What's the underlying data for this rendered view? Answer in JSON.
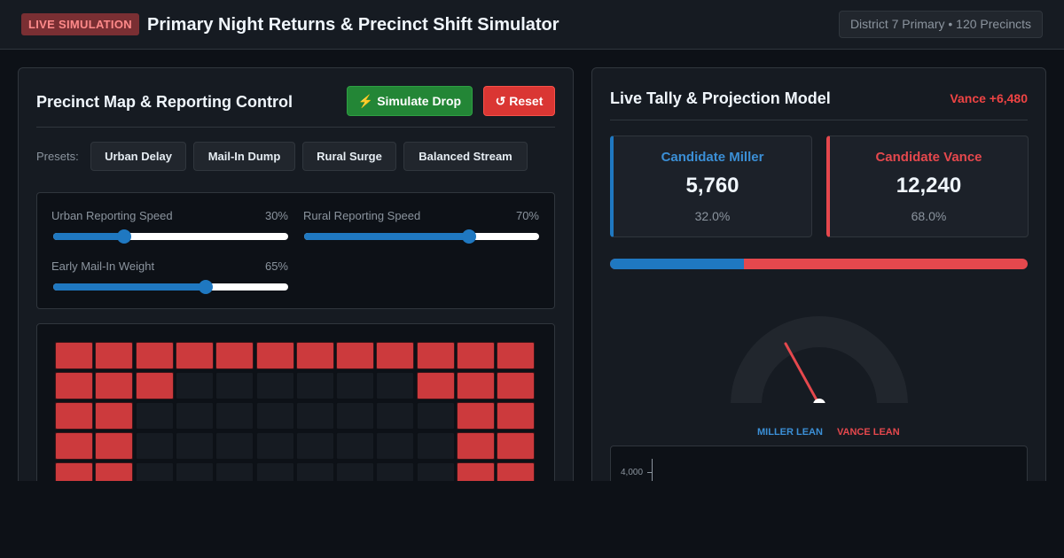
{
  "header": {
    "badge": "LIVE SIMULATION",
    "title": "Primary Night Returns & Precinct Shift Simulator",
    "district": "District 7 Primary • 120 Precincts"
  },
  "control_panel": {
    "title": "Precinct Map & Reporting Control",
    "simulate_label": "⚡ Simulate Drop",
    "reset_label": "↺ Reset",
    "presets_label": "Presets:",
    "presets": [
      "Urban Delay",
      "Mail-In Dump",
      "Rural Surge",
      "Balanced Stream"
    ],
    "sliders": [
      {
        "label": "Urban Reporting Speed",
        "value_text": "30%",
        "value": 0.3
      },
      {
        "label": "Rural Reporting Speed",
        "value_text": "70%",
        "value": 0.7
      },
      {
        "label": "Early Mail-In Weight",
        "value_text": "65%",
        "value": 0.65
      }
    ],
    "precinct_grid": {
      "columns": 12,
      "rows": [
        [
          1,
          1,
          1,
          1,
          1,
          1,
          1,
          1,
          1,
          1,
          1,
          1
        ],
        [
          1,
          1,
          1,
          0,
          0,
          0,
          0,
          0,
          0,
          1,
          1,
          1
        ],
        [
          1,
          1,
          0,
          0,
          0,
          0,
          0,
          0,
          0,
          0,
          1,
          1
        ],
        [
          1,
          1,
          0,
          0,
          0,
          0,
          0,
          0,
          0,
          0,
          1,
          1
        ],
        [
          1,
          1,
          0,
          0,
          0,
          0,
          0,
          0,
          0,
          0,
          1,
          1
        ]
      ]
    }
  },
  "tally_panel": {
    "title": "Live Tally & Projection Model",
    "lead_text": "Vance +6,480",
    "candidates": [
      {
        "name": "Candidate Miller",
        "votes": "5,760",
        "pct": "32.0%",
        "color": "#1f78c1"
      },
      {
        "name": "Candidate Vance",
        "votes": "12,240",
        "pct": "68.0%",
        "color": "#e5484d"
      }
    ],
    "miller_share": 0.32,
    "gauge": {
      "left_label": "MILLER LEAN",
      "right_label": "VANCE LEAN"
    },
    "trend": {
      "y_tick": "4,000"
    }
  },
  "colors": {
    "miller": "#1f78c1",
    "vance": "#e5484d",
    "reported": "#cc3a3d"
  }
}
